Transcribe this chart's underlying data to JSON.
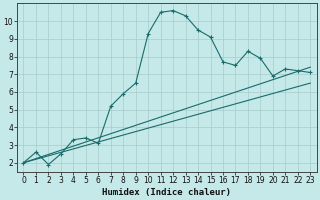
{
  "xlabel": "Humidex (Indice chaleur)",
  "background_color": "#c5e8e8",
  "grid_color": "#a8cccc",
  "line_color": "#1a6b6b",
  "xlim": [
    -0.5,
    23.5
  ],
  "ylim": [
    1.5,
    11.0
  ],
  "yticks": [
    2,
    3,
    4,
    5,
    6,
    7,
    8,
    9,
    10
  ],
  "xticks": [
    0,
    1,
    2,
    3,
    4,
    5,
    6,
    7,
    8,
    9,
    10,
    11,
    12,
    13,
    14,
    15,
    16,
    17,
    18,
    19,
    20,
    21,
    22,
    23
  ],
  "curve1_x": [
    0,
    1,
    2,
    3,
    4,
    5,
    6,
    7,
    8,
    9,
    10,
    11,
    12,
    13,
    14,
    15,
    16,
    17,
    18,
    19,
    20,
    21,
    22,
    23
  ],
  "curve1_y": [
    2.0,
    2.6,
    1.9,
    2.5,
    3.3,
    3.4,
    3.1,
    5.2,
    5.9,
    6.5,
    9.3,
    10.5,
    10.6,
    10.3,
    9.5,
    9.1,
    7.7,
    7.5,
    8.3,
    7.9,
    6.9,
    7.3,
    7.2,
    7.1
  ],
  "line2_x": [
    0,
    23
  ],
  "line2_y": [
    2.0,
    7.4
  ],
  "line3_x": [
    0,
    23
  ],
  "line3_y": [
    2.0,
    6.5
  ]
}
